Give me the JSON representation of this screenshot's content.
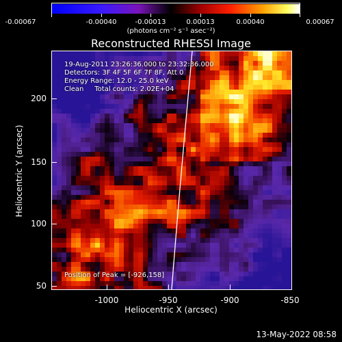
{
  "colorbar": {
    "tick_labels": [
      "-0.00067",
      "-0.00040",
      "-0.00013",
      "0.00013",
      "0.00040",
      "0.00067"
    ],
    "units": "(photons cm⁻² s⁻¹ asec⁻²)"
  },
  "title": "Reconstructed RHESSI Image",
  "info": {
    "time_range": "19-Aug-2011 23:26:36.000 to 23:32:36.000",
    "detectors": "Detectors: 3F 4F 5F 6F 7F 8F, Att 0",
    "energy_range": "Energy Range: 12.0 - 25.0 keV",
    "clean": "Clean     Total counts: 2.02E+04",
    "peak": "Position of Peak = [-926,158]"
  },
  "axes": {
    "xlabel": "Heliocentric X (arcsec)",
    "ylabel": "Heliocentric Y (arcsec)",
    "xticks": [
      "-1000",
      "-950",
      "-900",
      "-850"
    ],
    "yticks": [
      "200",
      "150",
      "100",
      "50"
    ]
  },
  "chart_data": {
    "type": "heatmap",
    "title": "Reconstructed RHESSI Image",
    "xlabel": "Heliocentric X (arcsec)",
    "ylabel": "Heliocentric Y (arcsec)",
    "xlim": [
      -1040,
      -850
    ],
    "ylim": [
      45,
      232
    ],
    "color_range": [
      -0.00067,
      0.00067
    ],
    "colormap": "blue-purple-black-red-yellow-white",
    "limb_line": "white solar limb curve"
  },
  "datestamp": "13-May-2022 08:58"
}
